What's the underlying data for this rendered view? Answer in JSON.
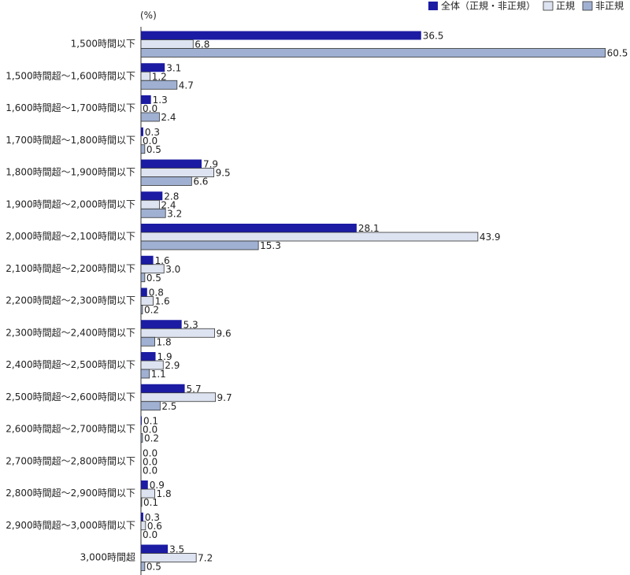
{
  "chart_data": {
    "type": "bar",
    "orientation": "horizontal",
    "x_label": "(%)",
    "categories": [
      "1,500時間以下",
      "1,500時間超～1,600時間以下",
      "1,600時間超～1,700時間以下",
      "1,700時間超～1,800時間以下",
      "1,800時間超～1,900時間以下",
      "1,900時間超～2,000時間以下",
      "2,000時間超～2,100時間以下",
      "2,100時間超～2,200時間以下",
      "2,200時間超～2,300時間以下",
      "2,300時間超～2,400時間以下",
      "2,400時間超～2,500時間以下",
      "2,500時間超～2,600時間以下",
      "2,600時間超～2,700時間以下",
      "2,700時間超～2,800時間以下",
      "2,800時間超～2,900時間以下",
      "2,900時間超～3,000時間以下",
      "3,000時間超"
    ],
    "series": [
      {
        "name": "全体（正規・非正規）",
        "color": "#1b1ba3",
        "values": [
          36.5,
          3.1,
          1.3,
          0.3,
          7.9,
          2.8,
          28.1,
          1.6,
          0.8,
          5.3,
          1.9,
          5.7,
          0.1,
          0.0,
          0.9,
          0.3,
          3.5
        ],
        "value_labels": [
          "36.5",
          "3.1",
          "1.3",
          "0.3",
          "7.9",
          "2.8",
          "28.1",
          "1.6",
          "0.8",
          "5.3",
          "1.9",
          "5.7",
          "0.1",
          "0.0",
          "0.9",
          "0.3",
          "3.5"
        ]
      },
      {
        "name": "正規",
        "color": "#dde3f0",
        "values": [
          6.8,
          1.2,
          0.0,
          0.0,
          9.5,
          2.4,
          43.9,
          3.0,
          1.6,
          9.6,
          2.9,
          9.7,
          0.0,
          0.0,
          1.8,
          0.6,
          7.2
        ],
        "value_labels": [
          "6.8",
          "1.2",
          "0.0",
          "0.0",
          "9.5",
          "2.4",
          "43.9",
          "3.0",
          "1.6",
          "9.6",
          "2.9",
          "9.7",
          "0.0",
          "0.0",
          "1.8",
          "0.6",
          "7.2"
        ]
      },
      {
        "name": "非正規",
        "color": "#9fb0d2",
        "values": [
          60.5,
          4.7,
          2.4,
          0.5,
          6.6,
          3.2,
          15.3,
          0.5,
          0.2,
          1.8,
          1.1,
          2.5,
          0.2,
          0.0,
          0.1,
          0.0,
          0.5
        ],
        "value_labels": [
          "60.5",
          "4.7",
          "2.4",
          "0.5",
          "6.6",
          "3.2",
          "15.3",
          "0.5",
          "0.2",
          "1.8",
          "1.1",
          "2.5",
          "0.2",
          "0.0",
          "0.1",
          "0.0",
          "0.5"
        ]
      }
    ],
    "xlim": [
      0,
      63
    ],
    "legend": "top-right"
  }
}
